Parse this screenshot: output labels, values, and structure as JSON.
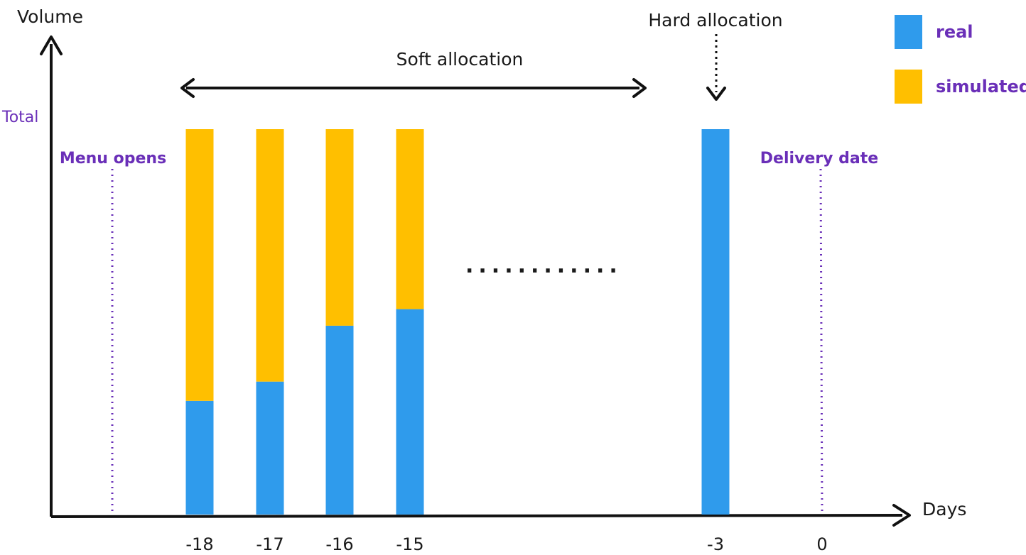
{
  "chart_data": {
    "type": "bar",
    "stacked": true,
    "title": "",
    "xlabel": "Days",
    "ylabel": "Volume",
    "y_reference_label": "Total",
    "categories": [
      "-18",
      "-17",
      "-16",
      "-15",
      "-3"
    ],
    "x_ticks": [
      "-18",
      "-17",
      "-16",
      "-15",
      "-3",
      "0"
    ],
    "total": 1,
    "series": [
      {
        "name": "real",
        "color": "#2f9bec",
        "values": [
          0.295,
          0.345,
          0.49,
          0.533,
          1.0
        ]
      },
      {
        "name": "simulated",
        "color": "#ffbf00",
        "values": [
          0.705,
          0.655,
          0.51,
          0.467,
          0.0
        ]
      }
    ],
    "legend": {
      "position": "top-right",
      "items": [
        {
          "label": "real",
          "color": "#2f9bec"
        },
        {
          "label": "simulated",
          "color": "#ffbf00"
        }
      ]
    },
    "annotations": {
      "soft_allocation": "Soft allocation",
      "hard_allocation": "Hard allocation",
      "menu_opens": "Menu opens",
      "delivery_date": "Delivery date",
      "menu_opens_marker_day": "-19",
      "delivery_date_marker_day": "0",
      "gap_dots": "............"
    },
    "grid": false
  }
}
